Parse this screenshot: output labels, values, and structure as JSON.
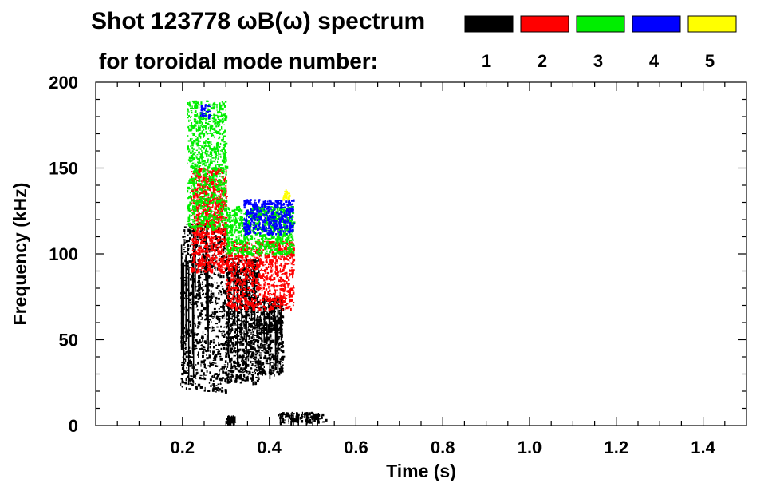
{
  "chart_data": {
    "type": "heatmap",
    "title": "Shot 123778 ωB(ω) spectrum",
    "subtitle": "for toroidal mode number:",
    "xlabel": "Time (s)",
    "ylabel": "Frequency (kHz)",
    "xlim": [
      0.0,
      1.5
    ],
    "ylim": [
      0,
      200
    ],
    "x_ticks": [
      0.2,
      0.4,
      0.6,
      0.8,
      1.0,
      1.2,
      1.4
    ],
    "x_tick_labels": [
      "0.2",
      "0.4",
      "0.6",
      "0.8",
      "1.0",
      "1.2",
      "1.4"
    ],
    "y_ticks": [
      0,
      50,
      100,
      150,
      200
    ],
    "y_tick_labels": [
      "0",
      "50",
      "100",
      "150",
      "200"
    ],
    "legend_placement": "top",
    "series": [
      {
        "mode": "1",
        "color": "#000000",
        "regions": [
          {
            "t": [
              0.195,
              0.3
            ],
            "f": [
              20,
              118
            ]
          },
          {
            "t": [
              0.3,
              0.375
            ],
            "f": [
              25,
              98
            ]
          },
          {
            "t": [
              0.375,
              0.43
            ],
            "f": [
              30,
              75
            ]
          },
          {
            "t": [
              0.42,
              0.53
            ],
            "f": [
              2,
              8
            ]
          },
          {
            "t": [
              0.3,
              0.32
            ],
            "f": [
              2,
              6
            ]
          }
        ]
      },
      {
        "mode": "2",
        "color": "#ff0000",
        "regions": [
          {
            "t": [
              0.22,
              0.3
            ],
            "f": [
              90,
              150
            ]
          },
          {
            "t": [
              0.3,
              0.455
            ],
            "f": [
              68,
              108
            ]
          }
        ]
      },
      {
        "mode": "3",
        "color": "#00ee00",
        "regions": [
          {
            "t": [
              0.21,
              0.3
            ],
            "f": [
              115,
              190
            ]
          },
          {
            "t": [
              0.3,
              0.455
            ],
            "f": [
              100,
              128
            ]
          }
        ]
      },
      {
        "mode": "4",
        "color": "#0000ff",
        "regions": [
          {
            "t": [
              0.24,
              0.26
            ],
            "f": [
              180,
              188
            ]
          },
          {
            "t": [
              0.34,
              0.455
            ],
            "f": [
              112,
              132
            ]
          }
        ]
      },
      {
        "mode": "5",
        "color": "#ffff00",
        "regions": [
          {
            "t": [
              0.43,
              0.445
            ],
            "f": [
              130,
              138
            ]
          }
        ]
      }
    ]
  }
}
